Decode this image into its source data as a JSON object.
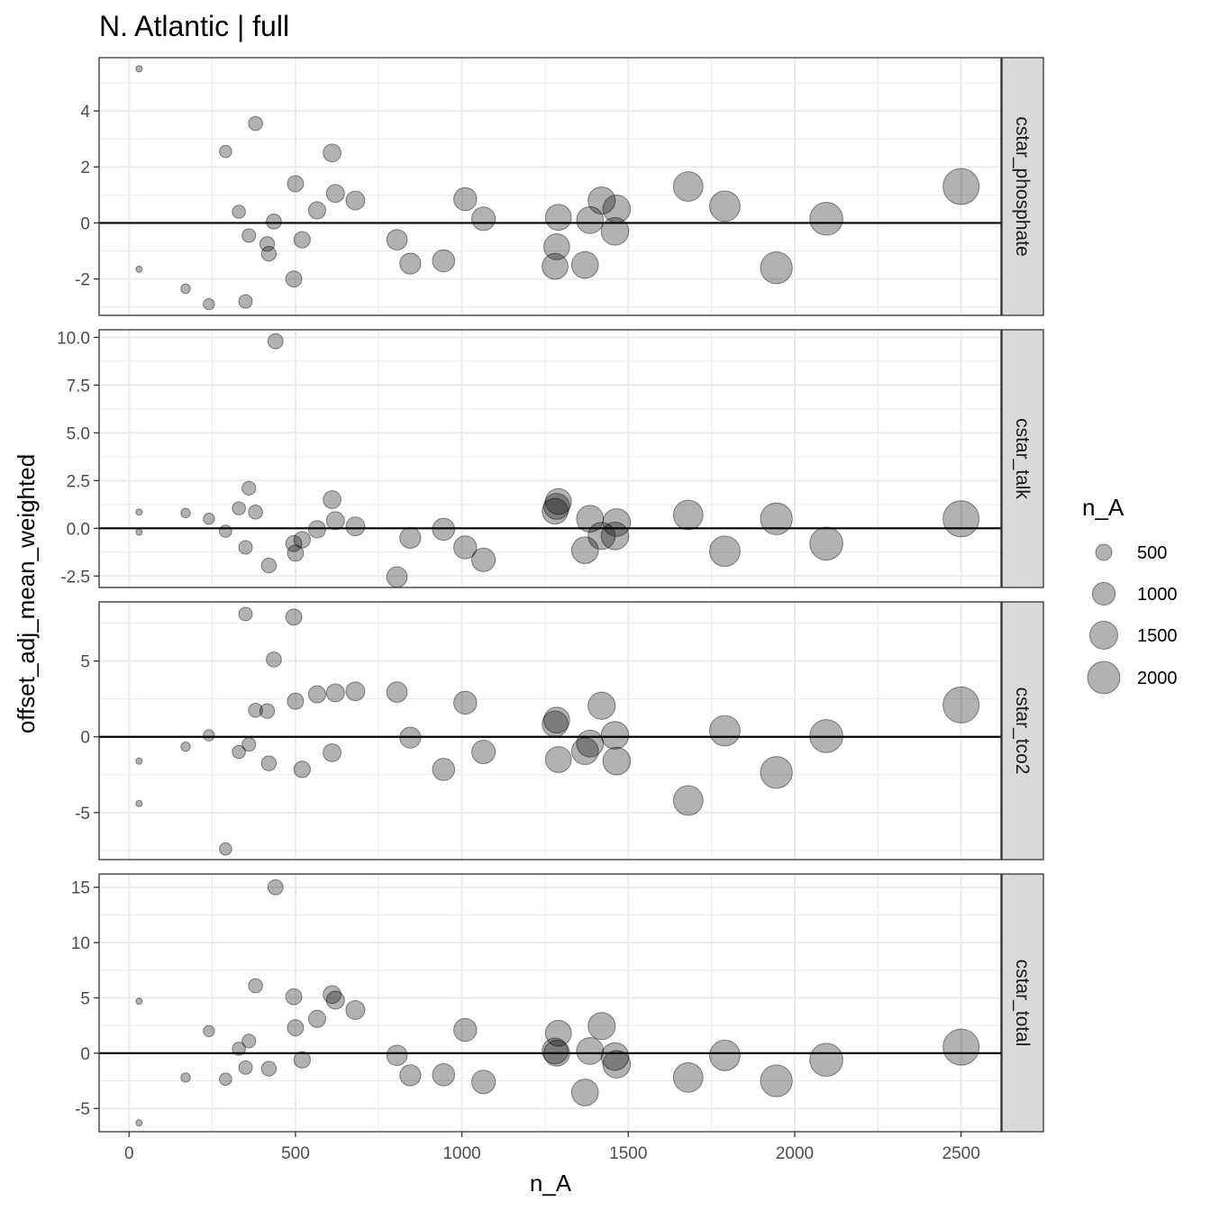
{
  "chart_data": {
    "type": "scatter",
    "title": "N. Atlantic | full",
    "xlabel": "n_A",
    "ylabel": "offset_adj_mean_weighted",
    "xlim": [
      -90,
      2620
    ],
    "x_ticks": [
      0,
      500,
      1000,
      1500,
      2000,
      2500
    ],
    "x_tick_labels": [
      "0",
      "500",
      "1000",
      "1500",
      "2000",
      "2500"
    ],
    "reference_line_y": 0,
    "size_variable": "n_A",
    "grid": true,
    "point_color": "#000000",
    "point_opacity": 0.3,
    "panel_border_color": "#333333",
    "strip_fill": "#d9d9d9",
    "gridline_color": "#ebebeb",
    "legend": {
      "title": "n_A",
      "position": "right",
      "entries": [
        {
          "label": "500",
          "value": 500
        },
        {
          "label": "1000",
          "value": 1000
        },
        {
          "label": "1500",
          "value": 1500
        },
        {
          "label": "2000",
          "value": 2000
        }
      ]
    },
    "panels": [
      {
        "strip": "cstar_phosphate",
        "ylim": [
          -3.3,
          5.9
        ],
        "y_ticks": [
          -2,
          0,
          2,
          4
        ],
        "y_tick_labels": [
          "-2",
          "0",
          "2",
          "4"
        ],
        "points": [
          {
            "x": 30,
            "y": 5.5
          },
          {
            "x": 30,
            "y": -1.65
          },
          {
            "x": 170,
            "y": -2.35
          },
          {
            "x": 240,
            "y": -2.9
          },
          {
            "x": 290,
            "y": 2.55
          },
          {
            "x": 330,
            "y": 0.4
          },
          {
            "x": 350,
            "y": -2.8
          },
          {
            "x": 360,
            "y": -0.45
          },
          {
            "x": 380,
            "y": 3.55
          },
          {
            "x": 415,
            "y": -0.75
          },
          {
            "x": 420,
            "y": -1.1
          },
          {
            "x": 435,
            "y": 0.05
          },
          {
            "x": 495,
            "y": -2.0
          },
          {
            "x": 500,
            "y": 1.4
          },
          {
            "x": 520,
            "y": -0.6
          },
          {
            "x": 565,
            "y": 0.45
          },
          {
            "x": 610,
            "y": 2.5
          },
          {
            "x": 620,
            "y": 1.05
          },
          {
            "x": 680,
            "y": 0.8
          },
          {
            "x": 805,
            "y": -0.6
          },
          {
            "x": 845,
            "y": -1.45
          },
          {
            "x": 945,
            "y": -1.35
          },
          {
            "x": 1010,
            "y": 0.85
          },
          {
            "x": 1065,
            "y": 0.15
          },
          {
            "x": 1280,
            "y": -1.55
          },
          {
            "x": 1285,
            "y": -0.85
          },
          {
            "x": 1290,
            "y": 0.2
          },
          {
            "x": 1370,
            "y": -1.5
          },
          {
            "x": 1385,
            "y": 0.1
          },
          {
            "x": 1420,
            "y": 0.8
          },
          {
            "x": 1460,
            "y": -0.3
          },
          {
            "x": 1465,
            "y": 0.5
          },
          {
            "x": 1680,
            "y": 1.3
          },
          {
            "x": 1790,
            "y": 0.6
          },
          {
            "x": 1945,
            "y": -1.6
          },
          {
            "x": 2095,
            "y": 0.15
          },
          {
            "x": 2500,
            "y": 1.3
          }
        ]
      },
      {
        "strip": "cstar_talk",
        "ylim": [
          -3.1,
          10.4
        ],
        "y_ticks": [
          -2.5,
          0.0,
          2.5,
          5.0,
          7.5,
          10.0
        ],
        "y_tick_labels": [
          "-2.5",
          "0.0",
          "2.5",
          "5.0",
          "7.5",
          "10.0"
        ],
        "points": [
          {
            "x": 30,
            "y": 0.85
          },
          {
            "x": 30,
            "y": -0.2
          },
          {
            "x": 170,
            "y": 0.8
          },
          {
            "x": 240,
            "y": 0.5
          },
          {
            "x": 290,
            "y": -0.15
          },
          {
            "x": 330,
            "y": 1.05
          },
          {
            "x": 350,
            "y": -1.0
          },
          {
            "x": 360,
            "y": 2.1
          },
          {
            "x": 380,
            "y": 0.85
          },
          {
            "x": 420,
            "y": -1.95
          },
          {
            "x": 440,
            "y": 9.8
          },
          {
            "x": 495,
            "y": -0.8
          },
          {
            "x": 500,
            "y": -1.3
          },
          {
            "x": 520,
            "y": -0.6
          },
          {
            "x": 565,
            "y": -0.05
          },
          {
            "x": 610,
            "y": 1.5
          },
          {
            "x": 620,
            "y": 0.4
          },
          {
            "x": 680,
            "y": 0.1
          },
          {
            "x": 805,
            "y": -2.55
          },
          {
            "x": 845,
            "y": -0.5
          },
          {
            "x": 945,
            "y": -0.05
          },
          {
            "x": 1010,
            "y": -1.0
          },
          {
            "x": 1065,
            "y": -1.65
          },
          {
            "x": 1280,
            "y": 0.9
          },
          {
            "x": 1285,
            "y": 1.15
          },
          {
            "x": 1290,
            "y": 1.4
          },
          {
            "x": 1370,
            "y": -1.15
          },
          {
            "x": 1385,
            "y": 0.5
          },
          {
            "x": 1420,
            "y": -0.4
          },
          {
            "x": 1460,
            "y": -0.4
          },
          {
            "x": 1465,
            "y": 0.3
          },
          {
            "x": 1680,
            "y": 0.7
          },
          {
            "x": 1790,
            "y": -1.2
          },
          {
            "x": 1945,
            "y": 0.5
          },
          {
            "x": 2095,
            "y": -0.8
          },
          {
            "x": 2500,
            "y": 0.5
          }
        ]
      },
      {
        "strip": "cstar_tco2",
        "ylim": [
          -8.1,
          8.9
        ],
        "y_ticks": [
          -5,
          0,
          5
        ],
        "y_tick_labels": [
          "-5",
          "0",
          "5"
        ],
        "points": [
          {
            "x": 30,
            "y": -1.6
          },
          {
            "x": 30,
            "y": -4.4
          },
          {
            "x": 170,
            "y": -0.65
          },
          {
            "x": 240,
            "y": 0.1
          },
          {
            "x": 290,
            "y": -7.4
          },
          {
            "x": 330,
            "y": -1.0
          },
          {
            "x": 350,
            "y": 8.1
          },
          {
            "x": 360,
            "y": -0.5
          },
          {
            "x": 380,
            "y": 1.75
          },
          {
            "x": 415,
            "y": 1.7
          },
          {
            "x": 420,
            "y": -1.75
          },
          {
            "x": 435,
            "y": 5.1
          },
          {
            "x": 495,
            "y": 7.9
          },
          {
            "x": 500,
            "y": 2.35
          },
          {
            "x": 520,
            "y": -2.15
          },
          {
            "x": 565,
            "y": 2.8
          },
          {
            "x": 610,
            "y": -1.05
          },
          {
            "x": 620,
            "y": 2.9
          },
          {
            "x": 680,
            "y": 3.0
          },
          {
            "x": 805,
            "y": 2.95
          },
          {
            "x": 845,
            "y": -0.05
          },
          {
            "x": 945,
            "y": -2.15
          },
          {
            "x": 1010,
            "y": 2.25
          },
          {
            "x": 1065,
            "y": -1.0
          },
          {
            "x": 1280,
            "y": 0.85
          },
          {
            "x": 1285,
            "y": 1.1
          },
          {
            "x": 1290,
            "y": -1.5
          },
          {
            "x": 1370,
            "y": -0.95
          },
          {
            "x": 1385,
            "y": -0.45
          },
          {
            "x": 1420,
            "y": 2.05
          },
          {
            "x": 1460,
            "y": 0.1
          },
          {
            "x": 1465,
            "y": -1.6
          },
          {
            "x": 1680,
            "y": -4.2
          },
          {
            "x": 1790,
            "y": 0.4
          },
          {
            "x": 1945,
            "y": -2.35
          },
          {
            "x": 2095,
            "y": 0.05
          },
          {
            "x": 2500,
            "y": 2.1
          }
        ]
      },
      {
        "strip": "cstar_total",
        "ylim": [
          -7.1,
          16.2
        ],
        "y_ticks": [
          -5,
          0,
          5,
          10,
          15
        ],
        "y_tick_labels": [
          "-5",
          "0",
          "5",
          "10",
          "15"
        ],
        "points": [
          {
            "x": 30,
            "y": 4.7
          },
          {
            "x": 30,
            "y": -6.3
          },
          {
            "x": 170,
            "y": -2.2
          },
          {
            "x": 240,
            "y": 2.0
          },
          {
            "x": 290,
            "y": -2.35
          },
          {
            "x": 330,
            "y": 0.4
          },
          {
            "x": 350,
            "y": -1.3
          },
          {
            "x": 360,
            "y": 1.1
          },
          {
            "x": 380,
            "y": 6.1
          },
          {
            "x": 420,
            "y": -1.4
          },
          {
            "x": 440,
            "y": 15.0
          },
          {
            "x": 495,
            "y": 5.1
          },
          {
            "x": 500,
            "y": 2.3
          },
          {
            "x": 520,
            "y": -0.6
          },
          {
            "x": 565,
            "y": 3.1
          },
          {
            "x": 610,
            "y": 5.3
          },
          {
            "x": 620,
            "y": 4.8
          },
          {
            "x": 680,
            "y": 3.9
          },
          {
            "x": 805,
            "y": -0.2
          },
          {
            "x": 845,
            "y": -2.0
          },
          {
            "x": 945,
            "y": -1.95
          },
          {
            "x": 1010,
            "y": 2.1
          },
          {
            "x": 1065,
            "y": -2.6
          },
          {
            "x": 1280,
            "y": 0.2
          },
          {
            "x": 1285,
            "y": 0.0
          },
          {
            "x": 1290,
            "y": 1.8
          },
          {
            "x": 1370,
            "y": -3.55
          },
          {
            "x": 1385,
            "y": 0.2
          },
          {
            "x": 1420,
            "y": 2.45
          },
          {
            "x": 1460,
            "y": -0.3
          },
          {
            "x": 1465,
            "y": -1.0
          },
          {
            "x": 1680,
            "y": -2.2
          },
          {
            "x": 1790,
            "y": -0.2
          },
          {
            "x": 1945,
            "y": -2.5
          },
          {
            "x": 2095,
            "y": -0.6
          },
          {
            "x": 2500,
            "y": 0.55
          }
        ]
      }
    ]
  }
}
